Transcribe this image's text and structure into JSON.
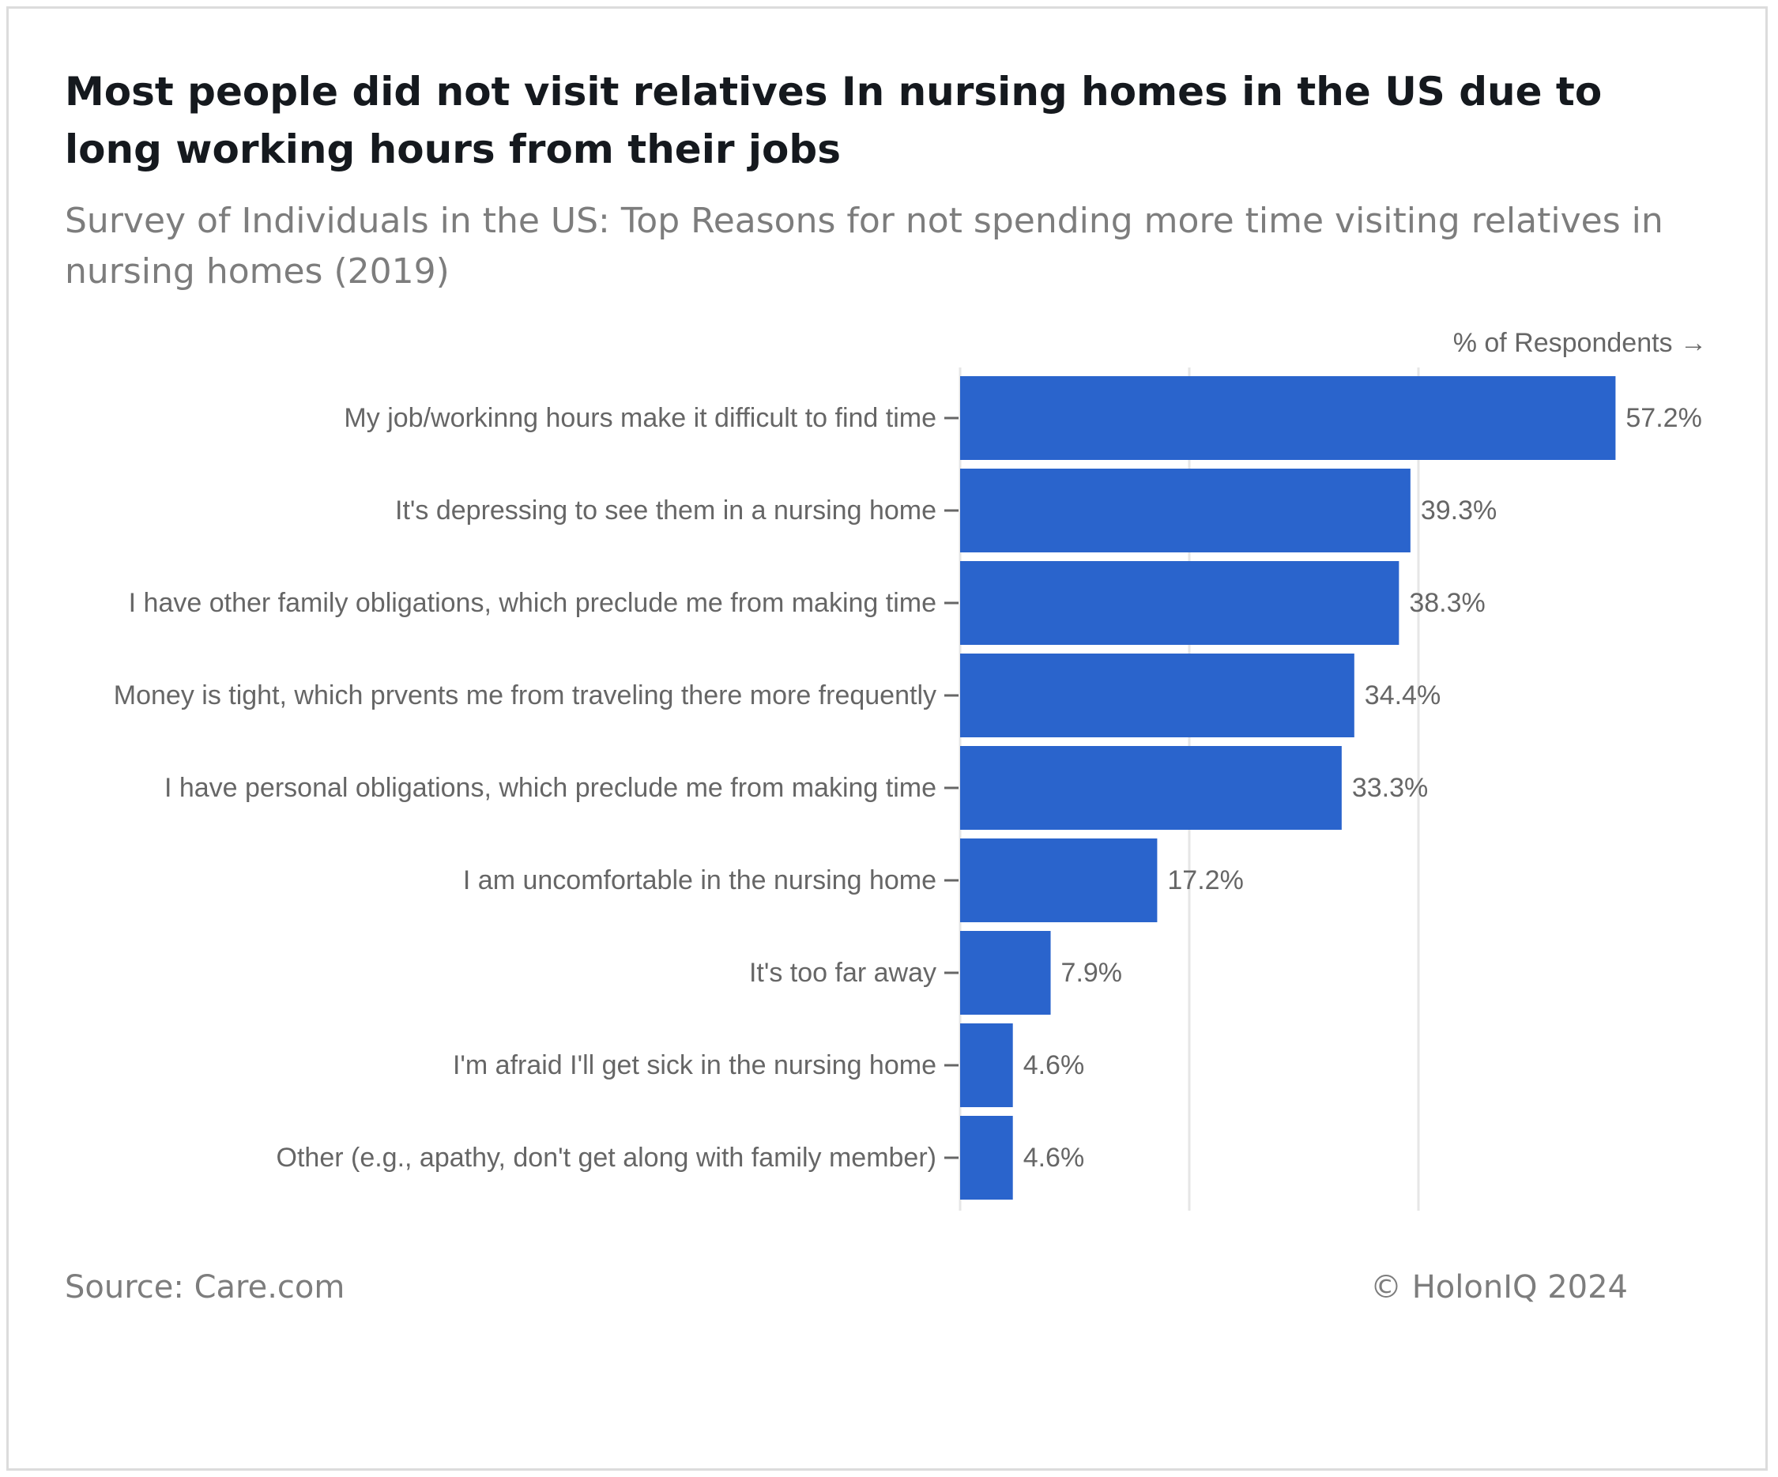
{
  "header": {
    "title": "Most people did not visit relatives In nursing homes in the US due to long working hours from their jobs",
    "subtitle": "Survey of Individuals in the US: Top Reasons for not spending more time visiting relatives in nursing homes (2019)"
  },
  "footer": {
    "source": "Source: Care.com",
    "credit": "© HolonIQ 2024"
  },
  "colors": {
    "bar": "#2a64cc",
    "grid": "#e6e6e6",
    "text": "#666666"
  },
  "chart_data": {
    "type": "bar",
    "orientation": "horizontal",
    "title": "Most people did not visit relatives In nursing homes in the US due to long working hours from their jobs",
    "subtitle": "Survey of Individuals in the US: Top Reasons for not spending more time visiting relatives in nursing homes (2019)",
    "xlabel": "% of Respondents →",
    "ylabel": "",
    "categories": [
      "My job/workinng hours make it difficult to find time",
      "It's depressing to see them in a nursing home",
      "I have other family obligations, which preclude me from making time",
      "Money is tight, which prvents me from traveling there more frequently",
      "I have personal obligations, which preclude me from making time",
      "I am uncomfortable in the nursing home",
      "It's too far away",
      "I'm afraid I'll get sick in the nursing home",
      "Other (e.g., apathy, don't get along with family member)"
    ],
    "values": [
      57.2,
      39.3,
      38.3,
      34.4,
      33.3,
      17.2,
      7.9,
      4.6,
      4.6
    ],
    "value_labels": [
      "57.2%",
      "39.3%",
      "38.3%",
      "34.4%",
      "33.3%",
      "17.2%",
      "7.9%",
      "4.6%",
      "4.6%"
    ],
    "xlim": [
      0,
      60
    ],
    "gridlines_at": [
      0,
      20,
      40
    ],
    "grid": true,
    "legend": "none"
  }
}
